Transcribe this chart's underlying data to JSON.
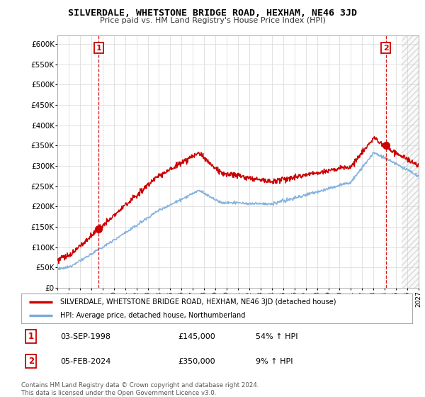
{
  "title": "SILVERDALE, WHETSTONE BRIDGE ROAD, HEXHAM, NE46 3JD",
  "subtitle": "Price paid vs. HM Land Registry's House Price Index (HPI)",
  "legend_label_red": "SILVERDALE, WHETSTONE BRIDGE ROAD, HEXHAM, NE46 3JD (detached house)",
  "legend_label_blue": "HPI: Average price, detached house, Northumberland",
  "annotation1_label": "1",
  "annotation1_date": "03-SEP-1998",
  "annotation1_price": "£145,000",
  "annotation1_hpi": "54% ↑ HPI",
  "annotation2_label": "2",
  "annotation2_date": "05-FEB-2024",
  "annotation2_price": "£350,000",
  "annotation2_hpi": "9% ↑ HPI",
  "footnote": "Contains HM Land Registry data © Crown copyright and database right 2024.\nThis data is licensed under the Open Government Licence v3.0.",
  "red_color": "#cc0000",
  "blue_color": "#7aabdb",
  "background_color": "#ffffff",
  "grid_color": "#dddddd",
  "hatch_color": "#cccccc",
  "ylim": [
    0,
    620000
  ],
  "yticks": [
    0,
    50000,
    100000,
    150000,
    200000,
    250000,
    300000,
    350000,
    400000,
    450000,
    500000,
    550000,
    600000
  ],
  "sale1_x": 1998.67,
  "sale1_y": 145000,
  "sale2_x": 2024.09,
  "sale2_y": 350000,
  "xlim_start": 1995,
  "xlim_end": 2027
}
